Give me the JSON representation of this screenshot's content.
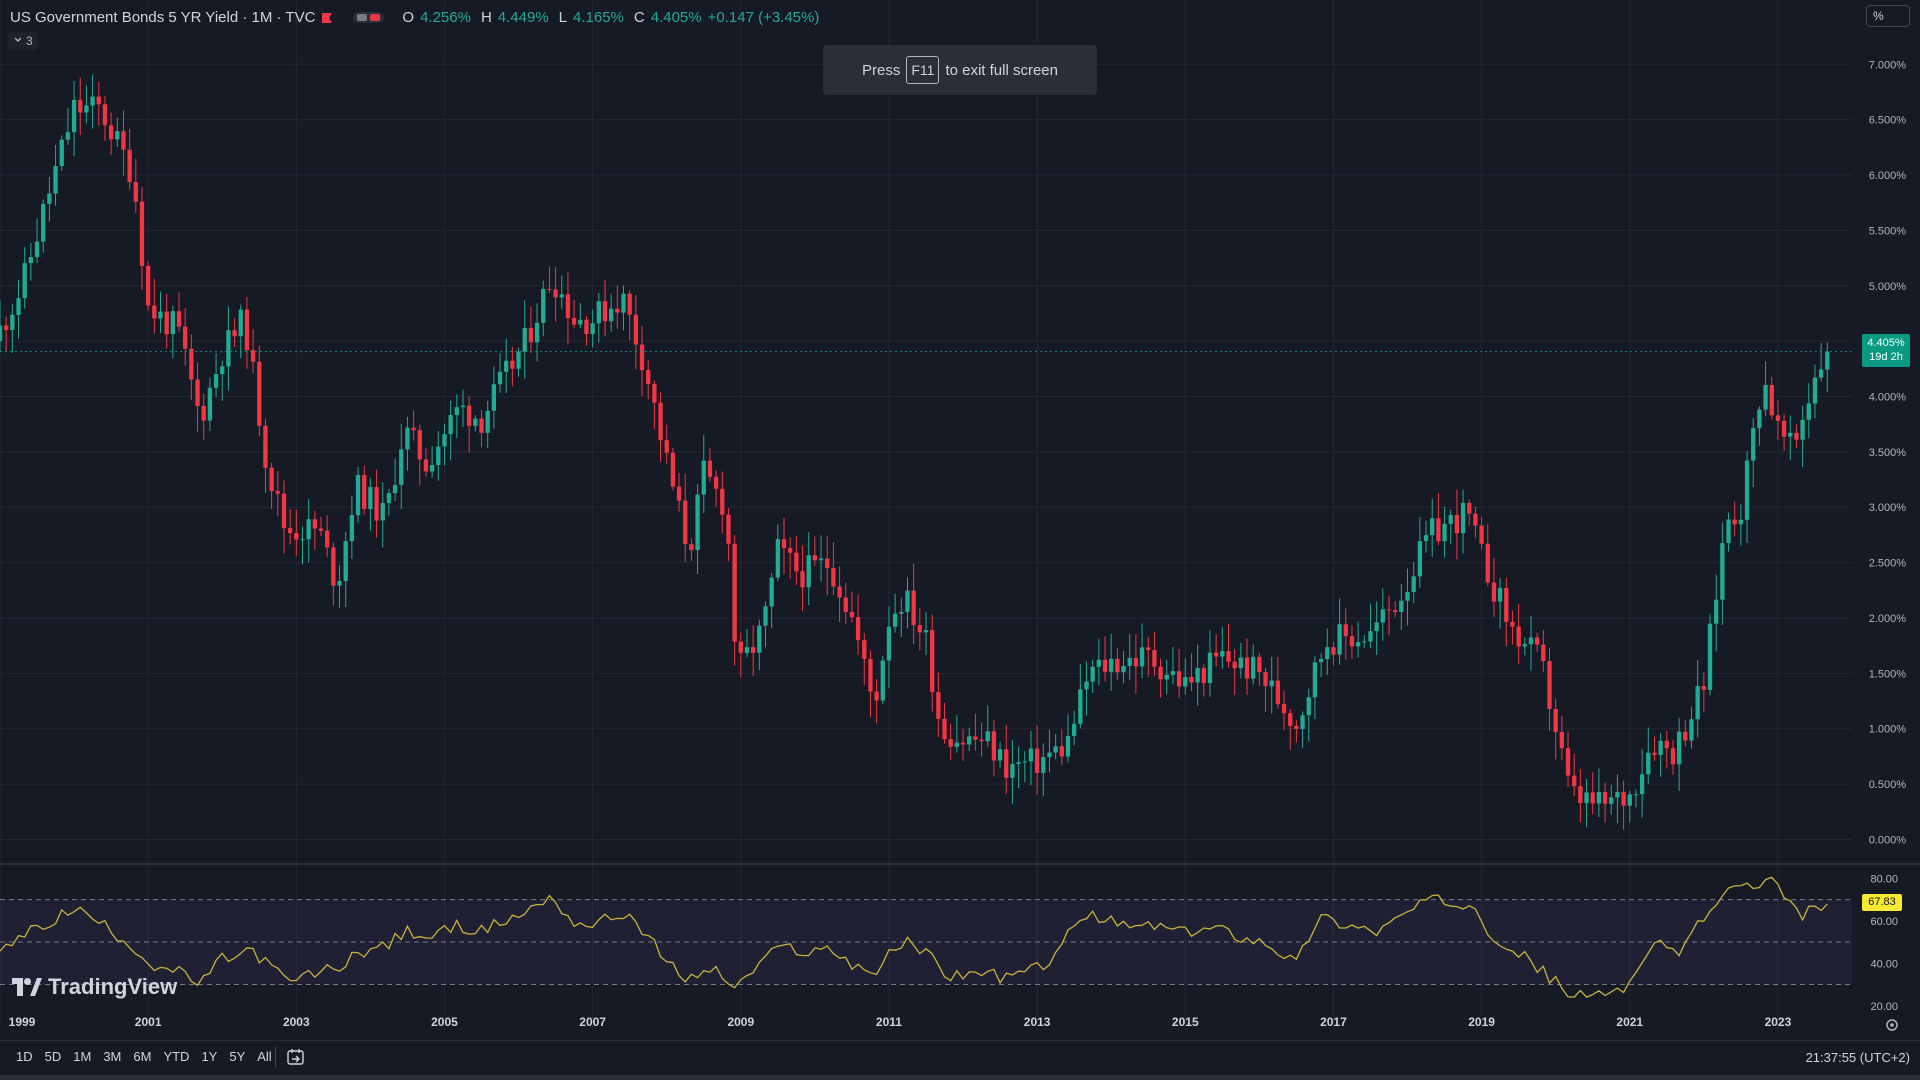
{
  "legend": {
    "title": "US Government Bonds 5 YR Yield · 1M · TVC",
    "open_label": "O",
    "open": "4.256%",
    "high_label": "H",
    "high": "4.449%",
    "low_label": "L",
    "low": "4.165%",
    "close_label": "C",
    "close": "4.405%",
    "change": "+0.147 (+3.45%)",
    "flag_color": "#f23645"
  },
  "collapse_count": "3",
  "toast": {
    "press": "Press",
    "key": "F11",
    "rest": "to exit full screen"
  },
  "scale_button": "%",
  "price_badge": {
    "value": "4.405%",
    "countdown": "19d 2h"
  },
  "rsi_badge": "67.83",
  "logo_text": "TradingView",
  "timeframes": [
    "1D",
    "5D",
    "1M",
    "3M",
    "6M",
    "YTD",
    "1Y",
    "5Y",
    "All"
  ],
  "clock": "21:37:55 (UTC+2)",
  "colors": {
    "background": "#161a25",
    "up": "#22ab94",
    "down": "#f23645",
    "rsi_line": "#c9b43a",
    "rsi_band": "#7e57c2",
    "badge_green": "#089981",
    "badge_yellow": "#f7e932"
  },
  "chart_data": [
    {
      "type": "candlestick",
      "title": "US Government Bonds 5 YR Yield · 1M · TVC",
      "y_ticks": [
        "0.000%",
        "0.500%",
        "1.000%",
        "1.500%",
        "2.000%",
        "2.500%",
        "3.000%",
        "3.500%",
        "4.000%",
        "4.500%",
        "5.000%",
        "5.500%",
        "6.000%",
        "6.500%",
        "7.000%"
      ],
      "ylim": [
        -0.05,
        7.4
      ],
      "x_ticks": [
        "1999",
        "2001",
        "2003",
        "2005",
        "2007",
        "2009",
        "2011",
        "2013",
        "2015",
        "2017",
        "2019",
        "2021",
        "2023"
      ],
      "xlim": [
        1999.0,
        2024.0
      ],
      "last_price": 4.405,
      "series": [
        {
          "key_points": [
            [
              1999.0,
              4.6
            ],
            [
              1999.3,
              5.0
            ],
            [
              1999.6,
              5.7
            ],
            [
              2000.0,
              6.6
            ],
            [
              2000.35,
              6.6
            ],
            [
              2000.8,
              6.0
            ],
            [
              2001.0,
              4.8
            ],
            [
              2001.4,
              4.6
            ],
            [
              2001.7,
              3.8
            ],
            [
              2002.0,
              4.4
            ],
            [
              2002.3,
              4.7
            ],
            [
              2002.6,
              3.4
            ],
            [
              2002.85,
              2.8
            ],
            [
              2003.3,
              2.8
            ],
            [
              2003.55,
              2.3
            ],
            [
              2003.8,
              3.2
            ],
            [
              2004.2,
              2.9
            ],
            [
              2004.45,
              3.7
            ],
            [
              2004.75,
              3.4
            ],
            [
              2005.2,
              3.9
            ],
            [
              2005.5,
              3.8
            ],
            [
              2005.75,
              4.1
            ],
            [
              2006.1,
              4.5
            ],
            [
              2006.45,
              5.1
            ],
            [
              2006.75,
              4.7
            ],
            [
              2007.0,
              4.7
            ],
            [
              2007.4,
              4.9
            ],
            [
              2007.7,
              4.3
            ],
            [
              2008.0,
              3.4
            ],
            [
              2008.3,
              2.6
            ],
            [
              2008.5,
              3.3
            ],
            [
              2008.8,
              3.0
            ],
            [
              2008.95,
              1.5
            ],
            [
              2009.3,
              1.9
            ],
            [
              2009.5,
              2.6
            ],
            [
              2009.8,
              2.4
            ],
            [
              2010.2,
              2.5
            ],
            [
              2010.5,
              2.0
            ],
            [
              2010.8,
              1.2
            ],
            [
              2011.0,
              2.0
            ],
            [
              2011.2,
              2.2
            ],
            [
              2011.5,
              1.8
            ],
            [
              2011.7,
              1.0
            ],
            [
              2012.0,
              0.9
            ],
            [
              2012.3,
              0.9
            ],
            [
              2012.6,
              0.65
            ],
            [
              2013.0,
              0.7
            ],
            [
              2013.4,
              0.85
            ],
            [
              2013.7,
              1.5
            ],
            [
              2014.0,
              1.6
            ],
            [
              2014.5,
              1.65
            ],
            [
              2015.0,
              1.4
            ],
            [
              2015.5,
              1.65
            ],
            [
              2016.0,
              1.5
            ],
            [
              2016.5,
              1.05
            ],
            [
              2016.9,
              1.8
            ],
            [
              2017.5,
              1.85
            ],
            [
              2017.9,
              2.2
            ],
            [
              2018.3,
              2.75
            ],
            [
              2018.8,
              2.95
            ],
            [
              2019.0,
              2.55
            ],
            [
              2019.4,
              1.9
            ],
            [
              2019.8,
              1.6
            ],
            [
              2020.2,
              0.4
            ],
            [
              2020.6,
              0.3
            ],
            [
              2021.0,
              0.4
            ],
            [
              2021.3,
              0.9
            ],
            [
              2021.6,
              0.8
            ],
            [
              2022.0,
              1.4
            ],
            [
              2022.3,
              2.9
            ],
            [
              2022.5,
              3.0
            ],
            [
              2022.8,
              4.2
            ],
            [
              2023.0,
              3.7
            ],
            [
              2023.2,
              3.5
            ],
            [
              2023.5,
              4.2
            ],
            [
              2023.65,
              4.405
            ]
          ]
        }
      ]
    },
    {
      "type": "line",
      "title": "",
      "y_ticks": [
        "20.00",
        "40.00",
        "60.00",
        "80.00"
      ],
      "ylim": [
        18,
        83
      ],
      "band": [
        30,
        70
      ],
      "midline": 50,
      "last_value": 67.83,
      "series": [
        {
          "key_points": [
            [
              1999.0,
              45
            ],
            [
              1999.3,
              53
            ],
            [
              1999.6,
              58
            ],
            [
              2000.0,
              66
            ],
            [
              2000.4,
              58
            ],
            [
              2000.8,
              48
            ],
            [
              2001.0,
              40
            ],
            [
              2001.4,
              36
            ],
            [
              2001.7,
              30
            ],
            [
              2002.0,
              42
            ],
            [
              2002.4,
              46
            ],
            [
              2002.7,
              37
            ],
            [
              2002.9,
              31
            ],
            [
              2003.3,
              36
            ],
            [
              2003.6,
              38
            ],
            [
              2003.8,
              45
            ],
            [
              2004.2,
              48
            ],
            [
              2004.5,
              55
            ],
            [
              2004.8,
              52
            ],
            [
              2005.2,
              58
            ],
            [
              2005.5,
              55
            ],
            [
              2005.8,
              60
            ],
            [
              2006.1,
              64
            ],
            [
              2006.45,
              72
            ],
            [
              2006.7,
              60
            ],
            [
              2007.0,
              58
            ],
            [
              2007.45,
              64
            ],
            [
              2007.7,
              55
            ],
            [
              2008.0,
              40
            ],
            [
              2008.3,
              32
            ],
            [
              2008.6,
              38
            ],
            [
              2008.95,
              28
            ],
            [
              2009.3,
              42
            ],
            [
              2009.6,
              48
            ],
            [
              2009.9,
              45
            ],
            [
              2010.2,
              47
            ],
            [
              2010.5,
              40
            ],
            [
              2010.8,
              35
            ],
            [
              2011.1,
              48
            ],
            [
              2011.3,
              50
            ],
            [
              2011.6,
              42
            ],
            [
              2011.8,
              34
            ],
            [
              2012.2,
              36
            ],
            [
              2012.6,
              33
            ],
            [
              2013.0,
              38
            ],
            [
              2013.3,
              44
            ],
            [
              2013.5,
              60
            ],
            [
              2013.8,
              62
            ],
            [
              2014.2,
              57
            ],
            [
              2014.6,
              58
            ],
            [
              2015.0,
              54
            ],
            [
              2015.4,
              57
            ],
            [
              2015.8,
              52
            ],
            [
              2016.1,
              50
            ],
            [
              2016.5,
              40
            ],
            [
              2016.8,
              62
            ],
            [
              2017.2,
              58
            ],
            [
              2017.6,
              55
            ],
            [
              2018.0,
              64
            ],
            [
              2018.3,
              70
            ],
            [
              2018.6,
              68
            ],
            [
              2018.9,
              69
            ],
            [
              2019.1,
              55
            ],
            [
              2019.4,
              47
            ],
            [
              2019.7,
              40
            ],
            [
              2019.9,
              34
            ],
            [
              2020.2,
              25
            ],
            [
              2020.5,
              24
            ],
            [
              2020.8,
              28
            ],
            [
              2021.0,
              30
            ],
            [
              2021.2,
              45
            ],
            [
              2021.4,
              48
            ],
            [
              2021.7,
              46
            ],
            [
              2021.9,
              58
            ],
            [
              2022.1,
              65
            ],
            [
              2022.3,
              73
            ],
            [
              2022.5,
              78
            ],
            [
              2022.7,
              74
            ],
            [
              2022.9,
              79
            ],
            [
              2023.1,
              70
            ],
            [
              2023.3,
              62
            ],
            [
              2023.5,
              66
            ],
            [
              2023.65,
              67.83
            ]
          ]
        }
      ]
    }
  ]
}
